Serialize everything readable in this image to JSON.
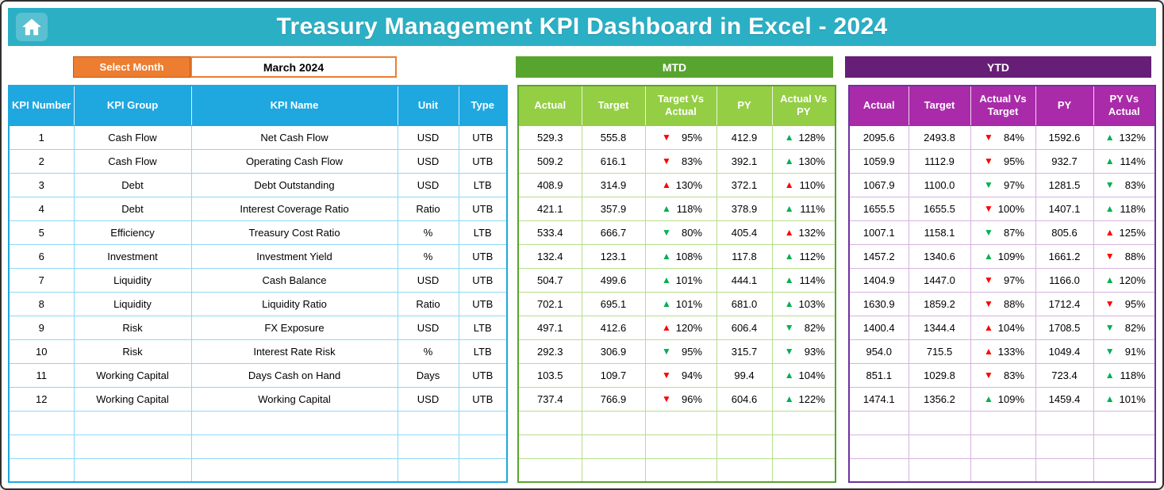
{
  "header": {
    "title": "Treasury Management KPI Dashboard in Excel - 2024"
  },
  "controls": {
    "select_month_label": "Select Month",
    "selected_month": "March 2024"
  },
  "sections": {
    "mtd_label": "MTD",
    "ytd_label": "YTD"
  },
  "colors": {
    "banner_teal": "#2BAFC4",
    "button_orange": "#ED7D31",
    "left_header_blue": "#1FA7E0",
    "mtd_bar_green": "#57A42E",
    "mtd_header_lime": "#94CE45",
    "ytd_bar_purple": "#671E76",
    "ytd_header_magenta": "#A92BA9",
    "triangle_green": "#00B050",
    "triangle_red": "#FF0000"
  },
  "table": {
    "left_headers": [
      "KPI Number",
      "KPI Group",
      "KPI Name",
      "Unit",
      "Type"
    ],
    "mtd_headers": [
      "Actual",
      "Target",
      "Target Vs Actual",
      "PY",
      "Actual Vs PY"
    ],
    "ytd_headers": [
      "Actual",
      "Target",
      "Actual Vs Target",
      "PY",
      "PY Vs Actual"
    ],
    "empty_rows": 3,
    "rows": [
      {
        "kpi_number": "1",
        "kpi_group": "Cash Flow",
        "kpi_name": "Net Cash Flow",
        "unit": "USD",
        "type": "UTB",
        "mtd": {
          "actual": "529.3",
          "target": "555.8",
          "target_vs_actual": {
            "dir": "down",
            "color": "red",
            "value": "95%"
          },
          "py": "412.9",
          "actual_vs_py": {
            "dir": "up",
            "color": "green",
            "value": "128%"
          }
        },
        "ytd": {
          "actual": "2095.6",
          "target": "2493.8",
          "actual_vs_target": {
            "dir": "down",
            "color": "red",
            "value": "84%"
          },
          "py": "1592.6",
          "py_vs_actual": {
            "dir": "up",
            "color": "green",
            "value": "132%"
          }
        }
      },
      {
        "kpi_number": "2",
        "kpi_group": "Cash Flow",
        "kpi_name": "Operating Cash Flow",
        "unit": "USD",
        "type": "UTB",
        "mtd": {
          "actual": "509.2",
          "target": "616.1",
          "target_vs_actual": {
            "dir": "down",
            "color": "red",
            "value": "83%"
          },
          "py": "392.1",
          "actual_vs_py": {
            "dir": "up",
            "color": "green",
            "value": "130%"
          }
        },
        "ytd": {
          "actual": "1059.9",
          "target": "1112.9",
          "actual_vs_target": {
            "dir": "down",
            "color": "red",
            "value": "95%"
          },
          "py": "932.7",
          "py_vs_actual": {
            "dir": "up",
            "color": "green",
            "value": "114%"
          }
        }
      },
      {
        "kpi_number": "3",
        "kpi_group": "Debt",
        "kpi_name": "Debt Outstanding",
        "unit": "USD",
        "type": "LTB",
        "mtd": {
          "actual": "408.9",
          "target": "314.9",
          "target_vs_actual": {
            "dir": "up",
            "color": "red",
            "value": "130%"
          },
          "py": "372.1",
          "actual_vs_py": {
            "dir": "up",
            "color": "red",
            "value": "110%"
          }
        },
        "ytd": {
          "actual": "1067.9",
          "target": "1100.0",
          "actual_vs_target": {
            "dir": "down",
            "color": "green",
            "value": "97%"
          },
          "py": "1281.5",
          "py_vs_actual": {
            "dir": "down",
            "color": "green",
            "value": "83%"
          }
        }
      },
      {
        "kpi_number": "4",
        "kpi_group": "Debt",
        "kpi_name": "Interest Coverage Ratio",
        "unit": "Ratio",
        "type": "UTB",
        "mtd": {
          "actual": "421.1",
          "target": "357.9",
          "target_vs_actual": {
            "dir": "up",
            "color": "green",
            "value": "118%"
          },
          "py": "378.9",
          "actual_vs_py": {
            "dir": "up",
            "color": "green",
            "value": "111%"
          }
        },
        "ytd": {
          "actual": "1655.5",
          "target": "1655.5",
          "actual_vs_target": {
            "dir": "down",
            "color": "red",
            "value": "100%"
          },
          "py": "1407.1",
          "py_vs_actual": {
            "dir": "up",
            "color": "green",
            "value": "118%"
          }
        }
      },
      {
        "kpi_number": "5",
        "kpi_group": "Efficiency",
        "kpi_name": "Treasury Cost Ratio",
        "unit": "%",
        "type": "LTB",
        "mtd": {
          "actual": "533.4",
          "target": "666.7",
          "target_vs_actual": {
            "dir": "down",
            "color": "green",
            "value": "80%"
          },
          "py": "405.4",
          "actual_vs_py": {
            "dir": "up",
            "color": "red",
            "value": "132%"
          }
        },
        "ytd": {
          "actual": "1007.1",
          "target": "1158.1",
          "actual_vs_target": {
            "dir": "down",
            "color": "green",
            "value": "87%"
          },
          "py": "805.6",
          "py_vs_actual": {
            "dir": "up",
            "color": "red",
            "value": "125%"
          }
        }
      },
      {
        "kpi_number": "6",
        "kpi_group": "Investment",
        "kpi_name": "Investment Yield",
        "unit": "%",
        "type": "UTB",
        "mtd": {
          "actual": "132.4",
          "target": "123.1",
          "target_vs_actual": {
            "dir": "up",
            "color": "green",
            "value": "108%"
          },
          "py": "117.8",
          "actual_vs_py": {
            "dir": "up",
            "color": "green",
            "value": "112%"
          }
        },
        "ytd": {
          "actual": "1457.2",
          "target": "1340.6",
          "actual_vs_target": {
            "dir": "up",
            "color": "green",
            "value": "109%"
          },
          "py": "1661.2",
          "py_vs_actual": {
            "dir": "down",
            "color": "red",
            "value": "88%"
          }
        }
      },
      {
        "kpi_number": "7",
        "kpi_group": "Liquidity",
        "kpi_name": "Cash Balance",
        "unit": "USD",
        "type": "UTB",
        "mtd": {
          "actual": "504.7",
          "target": "499.6",
          "target_vs_actual": {
            "dir": "up",
            "color": "green",
            "value": "101%"
          },
          "py": "444.1",
          "actual_vs_py": {
            "dir": "up",
            "color": "green",
            "value": "114%"
          }
        },
        "ytd": {
          "actual": "1404.9",
          "target": "1447.0",
          "actual_vs_target": {
            "dir": "down",
            "color": "red",
            "value": "97%"
          },
          "py": "1166.0",
          "py_vs_actual": {
            "dir": "up",
            "color": "green",
            "value": "120%"
          }
        }
      },
      {
        "kpi_number": "8",
        "kpi_group": "Liquidity",
        "kpi_name": "Liquidity Ratio",
        "unit": "Ratio",
        "type": "UTB",
        "mtd": {
          "actual": "702.1",
          "target": "695.1",
          "target_vs_actual": {
            "dir": "up",
            "color": "green",
            "value": "101%"
          },
          "py": "681.0",
          "actual_vs_py": {
            "dir": "up",
            "color": "green",
            "value": "103%"
          }
        },
        "ytd": {
          "actual": "1630.9",
          "target": "1859.2",
          "actual_vs_target": {
            "dir": "down",
            "color": "red",
            "value": "88%"
          },
          "py": "1712.4",
          "py_vs_actual": {
            "dir": "down",
            "color": "red",
            "value": "95%"
          }
        }
      },
      {
        "kpi_number": "9",
        "kpi_group": "Risk",
        "kpi_name": "FX Exposure",
        "unit": "USD",
        "type": "LTB",
        "mtd": {
          "actual": "497.1",
          "target": "412.6",
          "target_vs_actual": {
            "dir": "up",
            "color": "red",
            "value": "120%"
          },
          "py": "606.4",
          "actual_vs_py": {
            "dir": "down",
            "color": "green",
            "value": "82%"
          }
        },
        "ytd": {
          "actual": "1400.4",
          "target": "1344.4",
          "actual_vs_target": {
            "dir": "up",
            "color": "red",
            "value": "104%"
          },
          "py": "1708.5",
          "py_vs_actual": {
            "dir": "down",
            "color": "green",
            "value": "82%"
          }
        }
      },
      {
        "kpi_number": "10",
        "kpi_group": "Risk",
        "kpi_name": "Interest Rate Risk",
        "unit": "%",
        "type": "LTB",
        "mtd": {
          "actual": "292.3",
          "target": "306.9",
          "target_vs_actual": {
            "dir": "down",
            "color": "green",
            "value": "95%"
          },
          "py": "315.7",
          "actual_vs_py": {
            "dir": "down",
            "color": "green",
            "value": "93%"
          }
        },
        "ytd": {
          "actual": "954.0",
          "target": "715.5",
          "actual_vs_target": {
            "dir": "up",
            "color": "red",
            "value": "133%"
          },
          "py": "1049.4",
          "py_vs_actual": {
            "dir": "down",
            "color": "green",
            "value": "91%"
          }
        }
      },
      {
        "kpi_number": "11",
        "kpi_group": "Working Capital",
        "kpi_name": "Days Cash on Hand",
        "unit": "Days",
        "type": "UTB",
        "mtd": {
          "actual": "103.5",
          "target": "109.7",
          "target_vs_actual": {
            "dir": "down",
            "color": "red",
            "value": "94%"
          },
          "py": "99.4",
          "actual_vs_py": {
            "dir": "up",
            "color": "green",
            "value": "104%"
          }
        },
        "ytd": {
          "actual": "851.1",
          "target": "1029.8",
          "actual_vs_target": {
            "dir": "down",
            "color": "red",
            "value": "83%"
          },
          "py": "723.4",
          "py_vs_actual": {
            "dir": "up",
            "color": "green",
            "value": "118%"
          }
        }
      },
      {
        "kpi_number": "12",
        "kpi_group": "Working Capital",
        "kpi_name": "Working Capital",
        "unit": "USD",
        "type": "UTB",
        "mtd": {
          "actual": "737.4",
          "target": "766.9",
          "target_vs_actual": {
            "dir": "down",
            "color": "red",
            "value": "96%"
          },
          "py": "604.6",
          "actual_vs_py": {
            "dir": "up",
            "color": "green",
            "value": "122%"
          }
        },
        "ytd": {
          "actual": "1474.1",
          "target": "1356.2",
          "actual_vs_target": {
            "dir": "up",
            "color": "green",
            "value": "109%"
          },
          "py": "1459.4",
          "py_vs_actual": {
            "dir": "up",
            "color": "green",
            "value": "101%"
          }
        }
      }
    ]
  }
}
